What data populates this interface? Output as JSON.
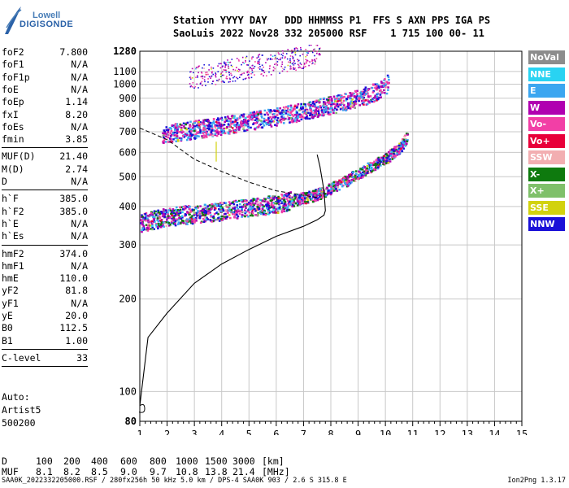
{
  "logo": {
    "line1": "Lowell",
    "line2": "DIGISONDE"
  },
  "header": {
    "line1": "Station YYYY DAY   DDD HHMMSS P1  FFS S AXN PPS IGA PS",
    "line2": "SaoLuis 2022 Nov28 332 205000 RSF    1 715 100 00- 11"
  },
  "params_group1": [
    {
      "name": "foF2",
      "value": "7.800"
    },
    {
      "name": "foF1",
      "value": "N/A"
    },
    {
      "name": "foF1p",
      "value": "N/A"
    },
    {
      "name": "foE",
      "value": "N/A"
    },
    {
      "name": "foEp",
      "value": "1.14"
    },
    {
      "name": "fxI",
      "value": "8.20"
    },
    {
      "name": "foEs",
      "value": "N/A"
    },
    {
      "name": "fmin",
      "value": "3.85"
    }
  ],
  "params_group2": [
    {
      "name": "MUF(D)",
      "value": "21.40"
    },
    {
      "name": "M(D)",
      "value": "2.74"
    },
    {
      "name": "D",
      "value": "N/A"
    }
  ],
  "params_group3": [
    {
      "name": "h`F",
      "value": "385.0"
    },
    {
      "name": "h`F2",
      "value": "385.0"
    },
    {
      "name": "h`E",
      "value": "N/A"
    },
    {
      "name": "h`Es",
      "value": "N/A"
    }
  ],
  "params_group4": [
    {
      "name": "hmF2",
      "value": "374.0"
    },
    {
      "name": "hmF1",
      "value": "N/A"
    },
    {
      "name": "hmE",
      "value": "110.0"
    },
    {
      "name": "yF2",
      "value": "81.8"
    },
    {
      "name": "yF1",
      "value": "N/A"
    },
    {
      "name": "yE",
      "value": "20.0"
    },
    {
      "name": "B0",
      "value": "112.5"
    },
    {
      "name": "B1",
      "value": "1.00"
    }
  ],
  "params_group5": [
    {
      "name": "C-level",
      "value": "33"
    }
  ],
  "auto": {
    "line1": "Auto:",
    "line2": "Artist5",
    "line3": "500200"
  },
  "legend": [
    {
      "label": "NoVal",
      "color": "#8c8c8c"
    },
    {
      "label": "NNE",
      "color": "#29d3f2"
    },
    {
      "label": "E",
      "color": "#3ba6f0"
    },
    {
      "label": "W",
      "color": "#b000b0"
    },
    {
      "label": "Vo-",
      "color": "#f23fa6"
    },
    {
      "label": "Vo+",
      "color": "#e8003a"
    },
    {
      "label": "SSW",
      "color": "#f2aeb1"
    },
    {
      "label": "X-",
      "color": "#0e7a0e"
    },
    {
      "label": "X+",
      "color": "#7fc06a"
    },
    {
      "label": "SSE",
      "color": "#d2d20d"
    },
    {
      "label": "NNW",
      "color": "#1a10d8"
    }
  ],
  "footer": {
    "row_d": {
      "label": "D",
      "values": [
        "100",
        "200",
        "400",
        "600",
        "800",
        "1000",
        "1500",
        "3000"
      ],
      "unit": "[km]"
    },
    "row_muf": {
      "label": "MUF",
      "values": [
        "8.1",
        "8.2",
        "8.5",
        "9.0",
        "9.7",
        "10.8",
        "13.8",
        "21.4"
      ],
      "unit": "[MHz]"
    },
    "file_line": "SAA0K_2022332205000.RSF / 280fx256h 50 kHz 5.0 km / DPS-4 SAA0K 903 / 2.6 S 315.8 E",
    "version": "Ion2Png 1.3.17"
  },
  "chart_data": {
    "type": "scatter",
    "title": "",
    "xlabel": "",
    "ylabel": "",
    "xlim": [
      1,
      15
    ],
    "xticks": [
      1,
      2,
      3,
      4,
      5,
      6,
      7,
      8,
      9,
      10,
      11,
      12,
      13,
      14,
      15
    ],
    "ylim": [
      80,
      1280
    ],
    "yticks": [
      80,
      100,
      200,
      300,
      400,
      500,
      600,
      700,
      800,
      900,
      1000,
      1100,
      1280
    ],
    "yscale": "log",
    "grid": true,
    "legend_position": "right",
    "series": [
      {
        "trace": "first-hop",
        "from_x": 1.0,
        "to_x": 10.8,
        "x": [
          1.0,
          2.0,
          3.0,
          4.0,
          5.0,
          6.0,
          7.0,
          7.5,
          8.0,
          8.5,
          9.0,
          9.5,
          10.0,
          10.5,
          10.8
        ],
        "y": [
          355,
          372,
          380,
          388,
          398,
          410,
          428,
          440,
          460,
          485,
          515,
          545,
          575,
          620,
          680
        ],
        "dominant": [
          "#1a10d8",
          "#b000b0",
          "#0e7a0e",
          "#f23fa6",
          "#3ba6f0"
        ]
      },
      {
        "trace": "second-hop",
        "from_x": 1.8,
        "to_x": 10.1,
        "x": [
          1.8,
          3.0,
          4.0,
          5.0,
          6.0,
          7.0,
          8.0,
          9.0,
          9.5,
          10.0,
          10.1
        ],
        "y": [
          690,
          715,
          735,
          760,
          790,
          820,
          860,
          905,
          940,
          990,
          1040
        ],
        "dominant": [
          "#b000b0",
          "#1a10d8",
          "#f23fa6",
          "#3ba6f0"
        ]
      },
      {
        "trace": "third-hop",
        "from_x": 2.8,
        "to_x": 7.6,
        "x": [
          2.8,
          3.5,
          4.0,
          5.0,
          6.0,
          7.0,
          7.6
        ],
        "y": [
          1050,
          1080,
          1100,
          1140,
          1180,
          1230,
          1280
        ],
        "dominant": [
          "#b000b0",
          "#f23fa6",
          "#1a10d8"
        ]
      },
      {
        "trace": "true-height-profile",
        "from_x": 1.0,
        "to_x": 7.8,
        "x": [
          1.0,
          1.3,
          2.0,
          3.0,
          4.0,
          5.0,
          6.0,
          7.0,
          7.5,
          7.75,
          7.8,
          7.75,
          7.6,
          7.5
        ],
        "y": [
          90,
          150,
          180,
          225,
          260,
          290,
          320,
          345,
          362,
          375,
          388,
          450,
          540,
          590
        ]
      },
      {
        "trace": "profile-dashed",
        "from_x": 1.0,
        "to_x": 7.5,
        "x": [
          1.0,
          2.0,
          3.0,
          4.0,
          5.0,
          6.0,
          7.0,
          7.5
        ],
        "y": [
          720,
          660,
          570,
          520,
          480,
          450,
          435,
          428
        ]
      }
    ]
  }
}
